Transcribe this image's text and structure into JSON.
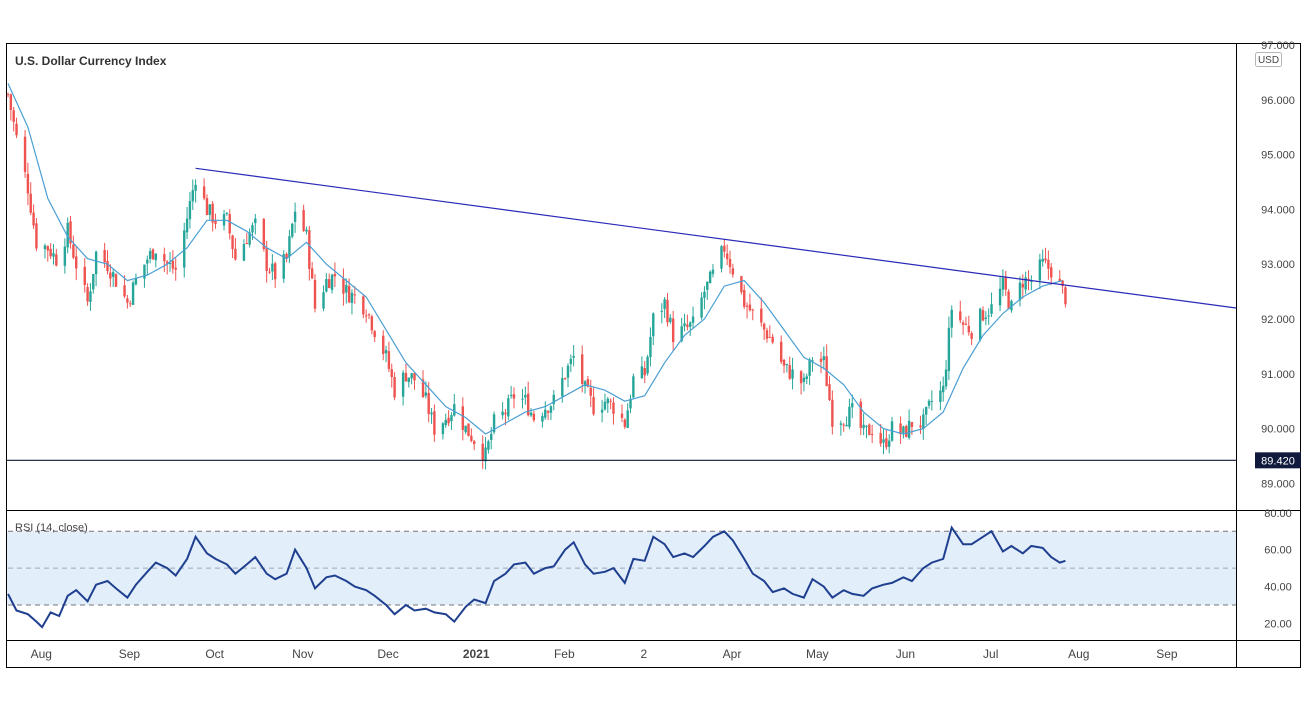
{
  "chart_data": [
    {
      "type": "candlestick",
      "title": "U.S. Dollar Currency Index",
      "currency_badge": "USD",
      "price_labels": [
        "97.000",
        "96.000",
        "95.000",
        "94.000",
        "93.000",
        "92.000",
        "91.000",
        "90.000",
        "89.000"
      ],
      "price_values": [
        97,
        96,
        95,
        94,
        93,
        92,
        91,
        90,
        89
      ],
      "ylim": [
        88.55,
        97.0
      ],
      "x_axis_labels": [
        "Aug",
        "Sep",
        "Oct",
        "Nov",
        "Dec",
        "2021",
        "Feb",
        "2",
        "Apr",
        "May",
        "Jun",
        "Jul",
        "Aug",
        "Sep"
      ],
      "x_axis_label_dates": [
        "2020-08-01",
        "2020-09-01",
        "2020-10-01",
        "2020-11-01",
        "2020-12-01",
        "2021-01-01",
        "2021-02-01",
        "2021-03-01",
        "2021-04-01",
        "2021-05-01",
        "2021-06-01",
        "2021-07-01",
        "2021-08-01",
        "2021-09-01"
      ],
      "xlim": [
        "2020-07-21",
        "2021-09-26"
      ],
      "support_line": {
        "value": 89.42,
        "label": "89.420"
      },
      "trendline": {
        "points": [
          {
            "x": "2020-09-25",
            "y": 94.75
          },
          {
            "x": "2021-09-26",
            "y": 92.2
          }
        ]
      },
      "moving_average_color": "#4a9fd4",
      "up_color": "#26a69a",
      "down_color": "#ef5350",
      "close_path": [
        [
          "2020-07-21",
          96.1
        ],
        [
          "2020-07-24",
          95.3
        ],
        [
          "2020-07-28",
          94.4
        ],
        [
          "2020-07-31",
          93.4
        ],
        [
          "2020-08-04",
          93.3
        ],
        [
          "2020-08-07",
          93.1
        ],
        [
          "2020-08-11",
          93.6
        ],
        [
          "2020-08-14",
          93.0
        ],
        [
          "2020-08-18",
          92.3
        ],
        [
          "2020-08-21",
          93.2
        ],
        [
          "2020-08-25",
          93.0
        ],
        [
          "2020-08-28",
          92.7
        ],
        [
          "2020-09-01",
          92.3
        ],
        [
          "2020-09-04",
          92.7
        ],
        [
          "2020-09-08",
          93.1
        ],
        [
          "2020-09-11",
          93.3
        ],
        [
          "2020-09-15",
          93.0
        ],
        [
          "2020-09-18",
          92.9
        ],
        [
          "2020-09-21",
          93.6
        ],
        [
          "2020-09-25",
          94.6
        ],
        [
          "2020-09-29",
          94.0
        ],
        [
          "2020-10-02",
          93.8
        ],
        [
          "2020-10-06",
          93.8
        ],
        [
          "2020-10-09",
          93.1
        ],
        [
          "2020-10-13",
          93.5
        ],
        [
          "2020-10-16",
          93.7
        ],
        [
          "2020-10-20",
          93.0
        ],
        [
          "2020-10-23",
          92.8
        ],
        [
          "2020-10-27",
          93.1
        ],
        [
          "2020-10-30",
          94.0
        ],
        [
          "2020-11-03",
          93.5
        ],
        [
          "2020-11-06",
          92.2
        ],
        [
          "2020-11-10",
          92.7
        ],
        [
          "2020-11-13",
          92.8
        ],
        [
          "2020-11-17",
          92.5
        ],
        [
          "2020-11-20",
          92.4
        ],
        [
          "2020-11-24",
          92.2
        ],
        [
          "2020-11-27",
          91.8
        ],
        [
          "2020-12-01",
          91.3
        ],
        [
          "2020-12-04",
          90.7
        ],
        [
          "2020-12-08",
          91.0
        ],
        [
          "2020-12-11",
          90.9
        ],
        [
          "2020-12-15",
          90.5
        ],
        [
          "2020-12-18",
          90.0
        ],
        [
          "2020-12-22",
          90.2
        ],
        [
          "2020-12-25",
          90.4
        ],
        [
          "2020-12-29",
          90.0
        ],
        [
          "2021-01-01",
          89.8
        ],
        [
          "2021-01-05",
          89.5
        ],
        [
          "2021-01-08",
          90.1
        ],
        [
          "2021-01-12",
          90.3
        ],
        [
          "2021-01-15",
          90.6
        ],
        [
          "2021-01-19",
          90.5
        ],
        [
          "2021-01-22",
          90.2
        ],
        [
          "2021-01-26",
          90.4
        ],
        [
          "2021-01-29",
          90.5
        ],
        [
          "2021-02-02",
          91.0
        ],
        [
          "2021-02-05",
          91.3
        ],
        [
          "2021-02-09",
          90.7
        ],
        [
          "2021-02-12",
          90.4
        ],
        [
          "2021-02-16",
          90.5
        ],
        [
          "2021-02-19",
          90.4
        ],
        [
          "2021-02-23",
          90.1
        ],
        [
          "2021-02-26",
          90.9
        ],
        [
          "2021-03-02",
          91.0
        ],
        [
          "2021-03-05",
          92.0
        ],
        [
          "2021-03-09",
          92.3
        ],
        [
          "2021-03-12",
          91.7
        ],
        [
          "2021-03-16",
          91.8
        ],
        [
          "2021-03-19",
          91.9
        ],
        [
          "2021-03-23",
          92.5
        ],
        [
          "2021-03-26",
          92.8
        ],
        [
          "2021-03-30",
          93.3
        ],
        [
          "2021-04-02",
          92.9
        ],
        [
          "2021-04-06",
          92.3
        ],
        [
          "2021-04-09",
          92.1
        ],
        [
          "2021-04-13",
          91.8
        ],
        [
          "2021-04-16",
          91.6
        ],
        [
          "2021-04-20",
          91.1
        ],
        [
          "2021-04-23",
          91.0
        ],
        [
          "2021-04-27",
          90.8
        ],
        [
          "2021-04-30",
          91.3
        ],
        [
          "2021-05-04",
          91.2
        ],
        [
          "2021-05-07",
          90.2
        ],
        [
          "2021-05-11",
          90.2
        ],
        [
          "2021-05-14",
          90.3
        ],
        [
          "2021-05-18",
          89.9
        ],
        [
          "2021-05-21",
          90.0
        ],
        [
          "2021-05-25",
          89.7
        ],
        [
          "2021-05-28",
          90.0
        ],
        [
          "2021-06-01",
          89.9
        ],
        [
          "2021-06-04",
          90.1
        ],
        [
          "2021-06-08",
          90.1
        ],
        [
          "2021-06-11",
          90.5
        ],
        [
          "2021-06-15",
          90.7
        ],
        [
          "2021-06-18",
          92.2
        ],
        [
          "2021-06-22",
          91.9
        ],
        [
          "2021-06-25",
          91.8
        ],
        [
          "2021-06-29",
          92.1
        ],
        [
          "2021-07-02",
          92.2
        ],
        [
          "2021-07-06",
          92.6
        ],
        [
          "2021-07-09",
          92.2
        ],
        [
          "2021-07-13",
          92.7
        ],
        [
          "2021-07-16",
          92.7
        ],
        [
          "2021-07-20",
          93.0
        ],
        [
          "2021-07-23",
          92.9
        ],
        [
          "2021-07-27",
          92.5
        ],
        [
          "2021-07-28",
          92.4
        ]
      ],
      "ma_path": [
        [
          "2020-07-21",
          96.3
        ],
        [
          "2020-07-28",
          95.5
        ],
        [
          "2020-08-04",
          94.2
        ],
        [
          "2020-08-11",
          93.5
        ],
        [
          "2020-08-18",
          93.1
        ],
        [
          "2020-08-25",
          93.0
        ],
        [
          "2020-09-01",
          92.7
        ],
        [
          "2020-09-08",
          92.8
        ],
        [
          "2020-09-15",
          93.0
        ],
        [
          "2020-09-22",
          93.3
        ],
        [
          "2020-09-29",
          93.8
        ],
        [
          "2020-10-06",
          93.8
        ],
        [
          "2020-10-13",
          93.6
        ],
        [
          "2020-10-20",
          93.3
        ],
        [
          "2020-10-27",
          93.1
        ],
        [
          "2020-11-03",
          93.4
        ],
        [
          "2020-11-10",
          93.0
        ],
        [
          "2020-11-17",
          92.7
        ],
        [
          "2020-11-24",
          92.4
        ],
        [
          "2020-12-01",
          91.8
        ],
        [
          "2020-12-08",
          91.2
        ],
        [
          "2020-12-15",
          90.8
        ],
        [
          "2020-12-22",
          90.4
        ],
        [
          "2020-12-29",
          90.2
        ],
        [
          "2021-01-05",
          89.9
        ],
        [
          "2021-01-12",
          90.1
        ],
        [
          "2021-01-19",
          90.3
        ],
        [
          "2021-01-26",
          90.4
        ],
        [
          "2021-02-02",
          90.6
        ],
        [
          "2021-02-09",
          90.8
        ],
        [
          "2021-02-16",
          90.7
        ],
        [
          "2021-02-23",
          90.5
        ],
        [
          "2021-03-02",
          90.6
        ],
        [
          "2021-03-09",
          91.2
        ],
        [
          "2021-03-16",
          91.7
        ],
        [
          "2021-03-23",
          92.0
        ],
        [
          "2021-03-30",
          92.6
        ],
        [
          "2021-04-06",
          92.7
        ],
        [
          "2021-04-13",
          92.3
        ],
        [
          "2021-04-20",
          91.8
        ],
        [
          "2021-04-27",
          91.3
        ],
        [
          "2021-05-04",
          91.1
        ],
        [
          "2021-05-11",
          90.8
        ],
        [
          "2021-05-18",
          90.3
        ],
        [
          "2021-05-25",
          90.0
        ],
        [
          "2021-06-01",
          89.9
        ],
        [
          "2021-06-08",
          90.0
        ],
        [
          "2021-06-15",
          90.3
        ],
        [
          "2021-06-22",
          91.1
        ],
        [
          "2021-06-29",
          91.7
        ],
        [
          "2021-07-06",
          92.1
        ],
        [
          "2021-07-13",
          92.4
        ],
        [
          "2021-07-20",
          92.6
        ],
        [
          "2021-07-27",
          92.7
        ]
      ]
    },
    {
      "type": "line",
      "title": "RSI (14, close)",
      "tick_labels": [
        "80.00",
        "60.00",
        "40.00",
        "20.00"
      ],
      "tick_values": [
        80,
        60,
        40,
        20
      ],
      "ylim": [
        11,
        81
      ],
      "band": {
        "upper": 70,
        "middle": 50,
        "lower": 30
      },
      "line_color": "#1f3f8f",
      "band_color": "#e3eefb",
      "series": [
        [
          "2020-07-21",
          36
        ],
        [
          "2020-07-24",
          27
        ],
        [
          "2020-07-28",
          25
        ],
        [
          "2020-07-31",
          21
        ],
        [
          "2020-08-02",
          18
        ],
        [
          "2020-08-05",
          26
        ],
        [
          "2020-08-08",
          24
        ],
        [
          "2020-08-11",
          35
        ],
        [
          "2020-08-14",
          38
        ],
        [
          "2020-08-18",
          32
        ],
        [
          "2020-08-21",
          41
        ],
        [
          "2020-08-25",
          43
        ],
        [
          "2020-08-28",
          39
        ],
        [
          "2020-09-01",
          34
        ],
        [
          "2020-09-04",
          41
        ],
        [
          "2020-09-08",
          48
        ],
        [
          "2020-09-11",
          53
        ],
        [
          "2020-09-15",
          50
        ],
        [
          "2020-09-18",
          46
        ],
        [
          "2020-09-22",
          55
        ],
        [
          "2020-09-25",
          67
        ],
        [
          "2020-09-29",
          58
        ],
        [
          "2020-10-02",
          55
        ],
        [
          "2020-10-06",
          52
        ],
        [
          "2020-10-09",
          47
        ],
        [
          "2020-10-13",
          52
        ],
        [
          "2020-10-16",
          56
        ],
        [
          "2020-10-20",
          47
        ],
        [
          "2020-10-23",
          44
        ],
        [
          "2020-10-27",
          47
        ],
        [
          "2020-10-30",
          60
        ],
        [
          "2020-11-03",
          50
        ],
        [
          "2020-11-06",
          39
        ],
        [
          "2020-11-10",
          45
        ],
        [
          "2020-11-13",
          46
        ],
        [
          "2020-11-17",
          43
        ],
        [
          "2020-11-20",
          40
        ],
        [
          "2020-11-24",
          38
        ],
        [
          "2020-11-27",
          35
        ],
        [
          "2020-12-01",
          30
        ],
        [
          "2020-12-04",
          25
        ],
        [
          "2020-12-08",
          30
        ],
        [
          "2020-12-11",
          27
        ],
        [
          "2020-12-15",
          28
        ],
        [
          "2020-12-18",
          26
        ],
        [
          "2020-12-22",
          25
        ],
        [
          "2020-12-25",
          21
        ],
        [
          "2020-12-29",
          29
        ],
        [
          "2021-01-01",
          33
        ],
        [
          "2021-01-05",
          31
        ],
        [
          "2021-01-08",
          43
        ],
        [
          "2021-01-12",
          47
        ],
        [
          "2021-01-15",
          52
        ],
        [
          "2021-01-19",
          53
        ],
        [
          "2021-01-22",
          47
        ],
        [
          "2021-01-26",
          50
        ],
        [
          "2021-01-29",
          51
        ],
        [
          "2021-02-02",
          60
        ],
        [
          "2021-02-05",
          64
        ],
        [
          "2021-02-09",
          52
        ],
        [
          "2021-02-12",
          47
        ],
        [
          "2021-02-16",
          48
        ],
        [
          "2021-02-19",
          50
        ],
        [
          "2021-02-23",
          42
        ],
        [
          "2021-02-26",
          55
        ],
        [
          "2021-03-02",
          54
        ],
        [
          "2021-03-05",
          67
        ],
        [
          "2021-03-09",
          63
        ],
        [
          "2021-03-12",
          56
        ],
        [
          "2021-03-16",
          58
        ],
        [
          "2021-03-19",
          56
        ],
        [
          "2021-03-23",
          62
        ],
        [
          "2021-03-26",
          67
        ],
        [
          "2021-03-30",
          70
        ],
        [
          "2021-04-02",
          65
        ],
        [
          "2021-04-06",
          55
        ],
        [
          "2021-04-09",
          47
        ],
        [
          "2021-04-13",
          43
        ],
        [
          "2021-04-16",
          37
        ],
        [
          "2021-04-20",
          39
        ],
        [
          "2021-04-23",
          36
        ],
        [
          "2021-04-27",
          34
        ],
        [
          "2021-04-30",
          44
        ],
        [
          "2021-05-04",
          40
        ],
        [
          "2021-05-07",
          34
        ],
        [
          "2021-05-11",
          38
        ],
        [
          "2021-05-14",
          36
        ],
        [
          "2021-05-18",
          35
        ],
        [
          "2021-05-21",
          39
        ],
        [
          "2021-05-25",
          41
        ],
        [
          "2021-05-28",
          42
        ],
        [
          "2021-06-01",
          45
        ],
        [
          "2021-06-04",
          43
        ],
        [
          "2021-06-08",
          50
        ],
        [
          "2021-06-11",
          53
        ],
        [
          "2021-06-15",
          55
        ],
        [
          "2021-06-18",
          72
        ],
        [
          "2021-06-22",
          63
        ],
        [
          "2021-06-25",
          63
        ],
        [
          "2021-06-29",
          67
        ],
        [
          "2021-07-02",
          70
        ],
        [
          "2021-07-06",
          59
        ],
        [
          "2021-07-09",
          62
        ],
        [
          "2021-07-13",
          58
        ],
        [
          "2021-07-16",
          62
        ],
        [
          "2021-07-20",
          61
        ],
        [
          "2021-07-23",
          56
        ],
        [
          "2021-07-26",
          53
        ],
        [
          "2021-07-28",
          54
        ]
      ]
    }
  ]
}
